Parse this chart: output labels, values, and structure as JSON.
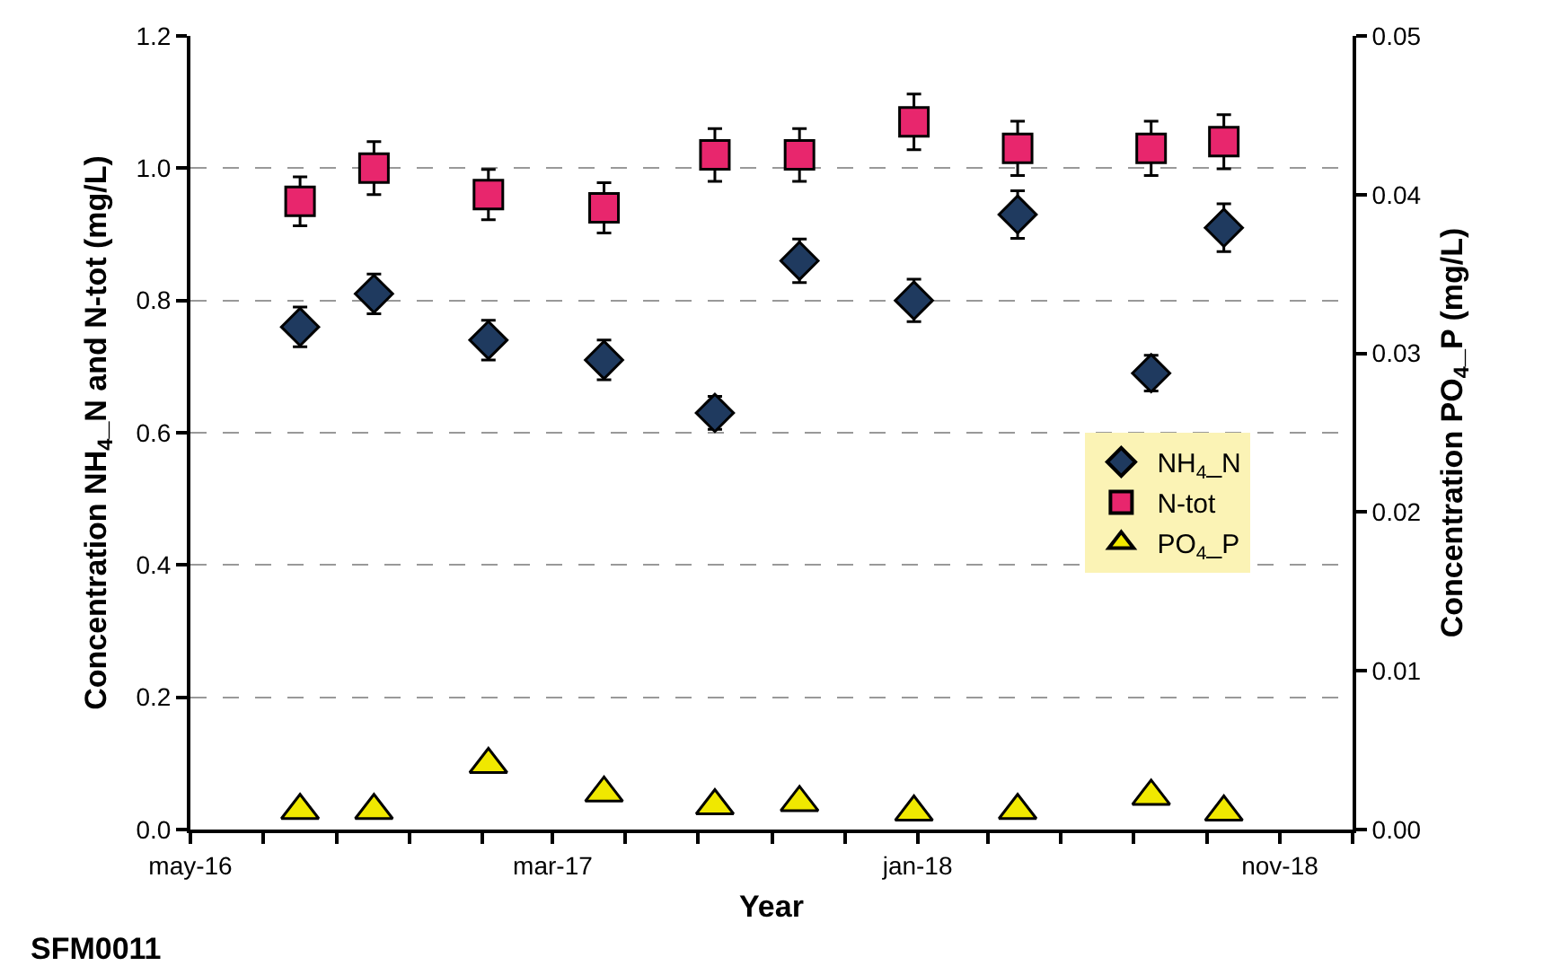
{
  "chart_data": {
    "type": "scatter",
    "xlabel": "Year",
    "ylabel": "Concentration NH$_{4}$_N and N-tot (mg/L)",
    "y2label": "Concentration PO$_{4}$_P (mg/L)",
    "annotations": [
      "SFM0011"
    ],
    "x": [
      "2016-08-01",
      "2016-10-02",
      "2017-01-06",
      "2017-04-13",
      "2017-07-15",
      "2017-09-24",
      "2017-12-29",
      "2018-03-26",
      "2018-07-16",
      "2018-09-15"
    ],
    "series": [
      {
        "name": "NH$_{4}$_N",
        "color": "#1f3a5f",
        "marker": "diamond",
        "values": [
          0.76,
          0.81,
          0.74,
          0.71,
          0.63,
          0.86,
          0.8,
          0.93,
          0.69,
          0.91
        ],
        "errors": [
          0.03,
          0.03,
          0.03,
          0.03,
          0.025,
          0.033,
          0.032,
          0.036,
          0.027,
          0.036
        ]
      },
      {
        "name": "N-tot",
        "color": "#e8266d",
        "marker": "square",
        "values": [
          0.95,
          1.0,
          0.96,
          0.94,
          1.02,
          1.02,
          1.07,
          1.03,
          1.03,
          1.04
        ],
        "errors": [
          0.037,
          0.04,
          0.038,
          0.038,
          0.04,
          0.04,
          0.042,
          0.041,
          0.041,
          0.041
        ]
      },
      {
        "name": "PO$_{4}$_P",
        "color": "#f0e800",
        "marker": "triangle",
        "axis": "y2",
        "values": [
          0.0012,
          0.0012,
          0.0041,
          0.0023,
          0.0015,
          0.0017,
          0.0011,
          0.0012,
          0.0021,
          0.0011
        ]
      }
    ],
    "xlim": [
      "2016-05-01",
      "2019-01-01"
    ],
    "xticks": [
      {
        "value": "2016-05-01",
        "label": "may-16"
      },
      {
        "value": "2016-07-01",
        "label": null
      },
      {
        "value": "2016-09-01",
        "label": null
      },
      {
        "value": "2016-11-01",
        "label": null
      },
      {
        "value": "2017-01-01",
        "label": null
      },
      {
        "value": "2017-03-01",
        "label": "mar-17"
      },
      {
        "value": "2017-05-01",
        "label": null
      },
      {
        "value": "2017-07-01",
        "label": null
      },
      {
        "value": "2017-09-01",
        "label": null
      },
      {
        "value": "2017-11-01",
        "label": null
      },
      {
        "value": "2018-01-01",
        "label": "jan-18"
      },
      {
        "value": "2018-03-01",
        "label": null
      },
      {
        "value": "2018-05-01",
        "label": null
      },
      {
        "value": "2018-07-01",
        "label": null
      },
      {
        "value": "2018-09-01",
        "label": null
      },
      {
        "value": "2018-11-01",
        "label": "nov-18"
      },
      {
        "value": "2019-01-01",
        "label": null
      }
    ],
    "ylim": [
      0,
      1.2
    ],
    "yticks": [
      {
        "value": 0,
        "label": "0.0"
      },
      0.2,
      0.4,
      0.6,
      0.8,
      {
        "value": 1,
        "label": "1.0"
      },
      1.2
    ],
    "y2lim": [
      0,
      0.05
    ],
    "y2ticks": [
      {
        "value": 0,
        "label": "0.00"
      },
      0.01,
      0.02,
      0.03,
      0.04,
      0.05
    ],
    "grid": "y",
    "legend": "right"
  }
}
